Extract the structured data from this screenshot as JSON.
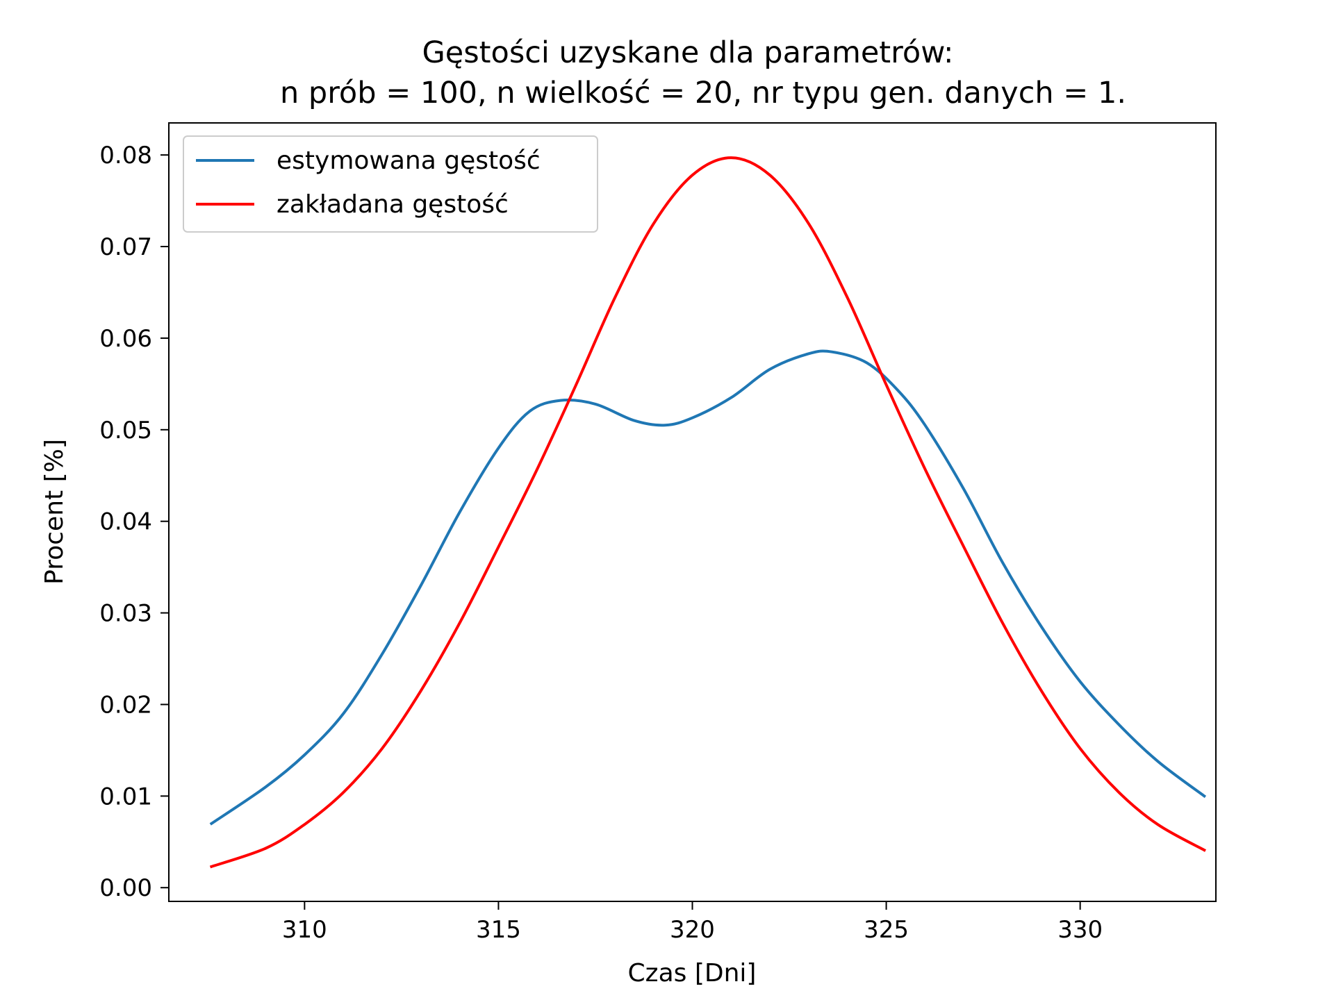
{
  "chart_data": {
    "type": "line",
    "title_line1": "Gęstości uzyskane dla parametrów:",
    "title_line2": "n prób = 100, n wielkość = 20, nr typu gen. danych = 1.",
    "xlabel": "Czas [Dni]",
    "ylabel": "Procent [%]",
    "xlim": [
      306.5,
      333.5
    ],
    "ylim": [
      -0.0015,
      0.0835
    ],
    "xticks": [
      310,
      315,
      320,
      325,
      330
    ],
    "xtick_labels": [
      "310",
      "315",
      "320",
      "325",
      "330"
    ],
    "yticks": [
      0.0,
      0.01,
      0.02,
      0.03,
      0.04,
      0.05,
      0.06,
      0.07,
      0.08
    ],
    "ytick_labels": [
      "0.00",
      "0.01",
      "0.02",
      "0.03",
      "0.04",
      "0.05",
      "0.06",
      "0.07",
      "0.08"
    ],
    "legend_position": "upper-left",
    "series": [
      {
        "name": "estymowana gęstość",
        "color": "#1f77b4",
        "x": [
          307.6,
          309.0,
          310.0,
          311.0,
          312.0,
          313.0,
          314.0,
          315.0,
          315.8,
          316.6,
          317.5,
          318.5,
          319.3,
          320.0,
          321.0,
          322.0,
          323.0,
          323.6,
          324.5,
          325.3,
          326.0,
          327.0,
          328.0,
          329.0,
          330.0,
          331.0,
          332.0,
          333.2
        ],
        "y": [
          0.007,
          0.011,
          0.0145,
          0.019,
          0.0255,
          0.033,
          0.041,
          0.048,
          0.052,
          0.0532,
          0.0528,
          0.051,
          0.0505,
          0.0513,
          0.0535,
          0.0566,
          0.0583,
          0.0585,
          0.0573,
          0.0543,
          0.0505,
          0.0435,
          0.0355,
          0.0285,
          0.0225,
          0.0178,
          0.0138,
          0.01
        ]
      },
      {
        "name": "zakładana gęstość",
        "color": "#ff0000",
        "x": [
          307.6,
          309.0,
          310.0,
          311.0,
          312.0,
          313.0,
          314.0,
          315.0,
          316.0,
          317.0,
          318.0,
          319.0,
          320.0,
          321.0,
          322.0,
          323.0,
          324.0,
          325.0,
          326.0,
          327.0,
          328.0,
          329.0,
          330.0,
          331.0,
          332.0,
          333.2
        ],
        "y": [
          0.0023,
          0.0043,
          0.0069,
          0.0104,
          0.0152,
          0.0215,
          0.0289,
          0.0372,
          0.0457,
          0.0549,
          0.0644,
          0.0725,
          0.0778,
          0.0797,
          0.0778,
          0.0725,
          0.0644,
          0.0549,
          0.0457,
          0.0372,
          0.0289,
          0.0215,
          0.0152,
          0.0104,
          0.0069,
          0.0041
        ]
      }
    ]
  }
}
